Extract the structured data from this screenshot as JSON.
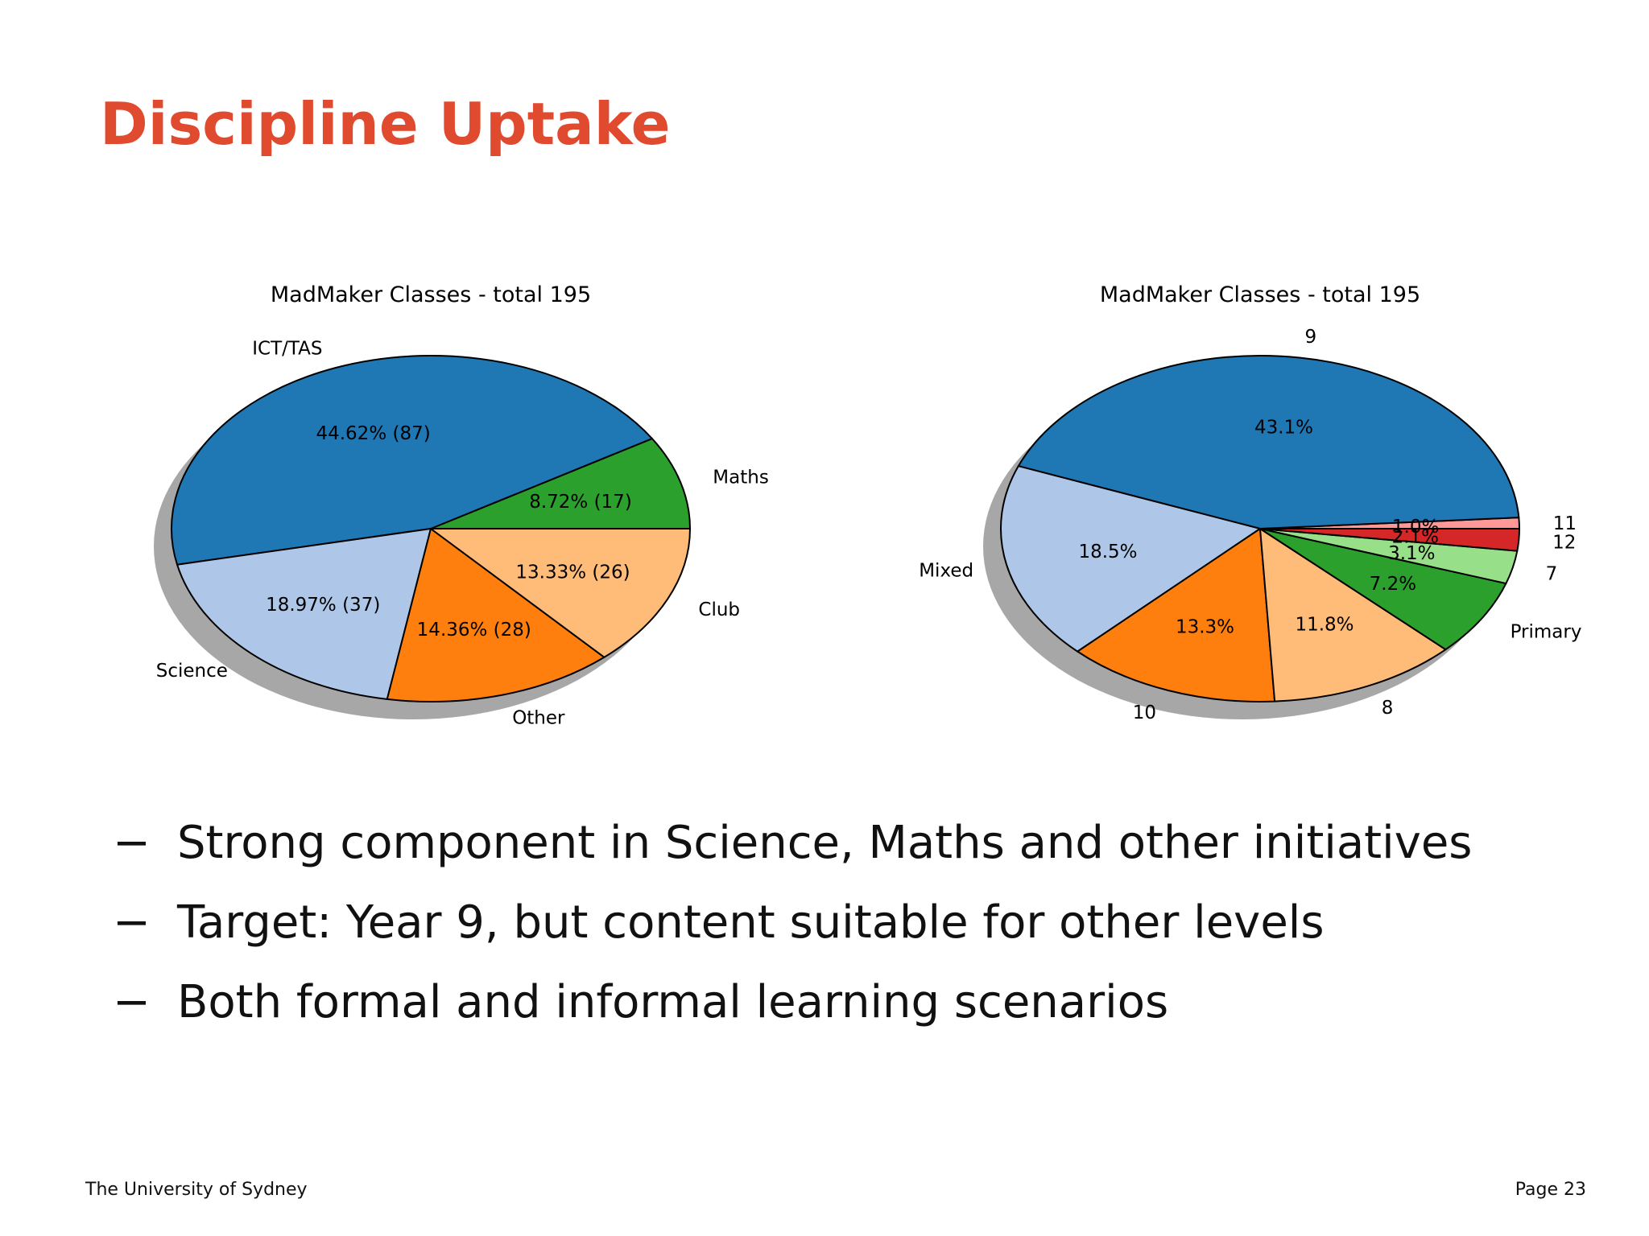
{
  "slide": {
    "title": "Discipline Uptake",
    "bullet_marker": "−",
    "bullets": [
      "Strong component in Science, Maths and other initiatives",
      "Target: Year 9, but content suitable for other levels",
      "Both formal and informal learning scenarios"
    ],
    "footer_left": "The University of Sydney",
    "footer_right": "Page 23"
  },
  "chart_data": [
    {
      "type": "pie",
      "title": "MadMaker Classes - total 195",
      "total": 195,
      "shadow": true,
      "start_angle": 0,
      "direction": "counterclockwise",
      "slices": [
        {
          "label": "Maths",
          "value": 17,
          "pct_label": "8.72%  (17)",
          "color": "#2ca02c"
        },
        {
          "label": "ICT/TAS",
          "value": 87,
          "pct_label": "44.62%  (87)",
          "color": "#1f77b4"
        },
        {
          "label": "Science",
          "value": 37,
          "pct_label": "18.97%  (37)",
          "color": "#aec7e8"
        },
        {
          "label": "Other",
          "value": 28,
          "pct_label": "14.36%  (28)",
          "color": "#ff7f0e"
        },
        {
          "label": "Club",
          "value": 26,
          "pct_label": "13.33%  (26)",
          "color": "#ffbb78"
        }
      ]
    },
    {
      "type": "pie",
      "title": "MadMaker Classes - total 195",
      "total": 195,
      "shadow": true,
      "start_angle": 0,
      "direction": "counterclockwise",
      "slices": [
        {
          "label": "11",
          "value": 2,
          "pct_label": "1.0%",
          "color": "#ff9896"
        },
        {
          "label": "9",
          "value": 84,
          "pct_label": "43.1%",
          "color": "#1f77b4"
        },
        {
          "label": "Mixed",
          "value": 36,
          "pct_label": "18.5%",
          "color": "#aec7e8"
        },
        {
          "label": "10",
          "value": 26,
          "pct_label": "13.3%",
          "color": "#ff7f0e"
        },
        {
          "label": "8",
          "value": 23,
          "pct_label": "11.8%",
          "color": "#ffbb78"
        },
        {
          "label": "Primary",
          "value": 14,
          "pct_label": "7.2%",
          "color": "#2ca02c"
        },
        {
          "label": "7",
          "value": 6,
          "pct_label": "3.1%",
          "color": "#98df8a"
        },
        {
          "label": "12",
          "value": 4,
          "pct_label": "2.1%",
          "color": "#d62728"
        }
      ]
    }
  ]
}
